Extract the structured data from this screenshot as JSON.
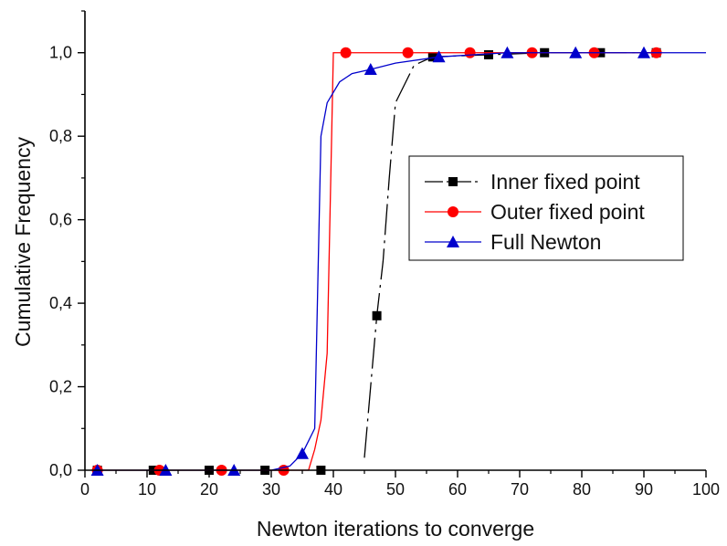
{
  "chart_data": {
    "type": "line",
    "xlabel": "Newton iterations to converge",
    "ylabel": "Cumulative Frequency",
    "xlim": [
      0,
      100
    ],
    "ylim": [
      0,
      1.1
    ],
    "x_ticks": [
      0,
      10,
      20,
      30,
      40,
      50,
      60,
      70,
      80,
      90,
      100
    ],
    "x_tick_labels": [
      "0",
      "10",
      "20",
      "30",
      "40",
      "50",
      "60",
      "70",
      "80",
      "90",
      "100"
    ],
    "y_ticks": [
      0,
      0.2,
      0.4,
      0.6,
      0.8,
      1.0
    ],
    "y_tick_labels": [
      "0,0",
      "0,2",
      "0,4",
      "0,6",
      "0,8",
      "1,0"
    ],
    "grid": false,
    "legend_position": "right",
    "series": [
      {
        "name": "Inner fixed point",
        "color": "#000000",
        "marker": "square",
        "line_style": "dash-dot",
        "line": [
          [
            45,
            0.03
          ],
          [
            46,
            0.2
          ],
          [
            47,
            0.37
          ],
          [
            48,
            0.5
          ],
          [
            49,
            0.7
          ],
          [
            50,
            0.88
          ],
          [
            53,
            0.97
          ],
          [
            56,
            0.99
          ],
          [
            65,
            0.995
          ],
          [
            74,
            1.0
          ],
          [
            83,
            1.0
          ],
          [
            92,
            1.0
          ]
        ],
        "markers": [
          [
            2,
            0
          ],
          [
            11,
            0
          ],
          [
            20,
            0
          ],
          [
            29,
            0
          ],
          [
            38,
            0
          ],
          [
            47,
            0.37
          ],
          [
            56,
            0.99
          ],
          [
            65,
            0.995
          ],
          [
            74,
            1.0
          ],
          [
            83,
            1.0
          ],
          [
            92,
            1.0
          ]
        ]
      },
      {
        "name": "Outer fixed point",
        "color": "#ff0000",
        "marker": "circle",
        "line_style": "solid",
        "line": [
          [
            2,
            0
          ],
          [
            32,
            0
          ],
          [
            35,
            0
          ],
          [
            36,
            0
          ],
          [
            37,
            0.05
          ],
          [
            38,
            0.12
          ],
          [
            39,
            0.28
          ],
          [
            40,
            1.0
          ],
          [
            42,
            1.0
          ],
          [
            52,
            1.0
          ],
          [
            62,
            1.0
          ],
          [
            72,
            1.0
          ],
          [
            82,
            1.0
          ],
          [
            92,
            1.0
          ]
        ],
        "markers": [
          [
            2,
            0
          ],
          [
            12,
            0
          ],
          [
            22,
            0
          ],
          [
            32,
            0
          ],
          [
            42,
            1.0
          ],
          [
            52,
            1.0
          ],
          [
            62,
            1.0
          ],
          [
            72,
            1.0
          ],
          [
            82,
            1.0
          ],
          [
            92,
            1.0
          ]
        ]
      },
      {
        "name": "Full Newton",
        "color": "#0000cc",
        "marker": "triangle",
        "line_style": "solid",
        "line": [
          [
            2,
            0
          ],
          [
            13,
            0
          ],
          [
            24,
            0
          ],
          [
            30,
            0
          ],
          [
            33,
            0.01
          ],
          [
            35,
            0.04
          ],
          [
            37,
            0.1
          ],
          [
            38,
            0.8
          ],
          [
            39,
            0.88
          ],
          [
            41,
            0.93
          ],
          [
            43,
            0.95
          ],
          [
            46,
            0.96
          ],
          [
            50,
            0.975
          ],
          [
            57,
            0.99
          ],
          [
            68,
            1.0
          ],
          [
            79,
            1.0
          ],
          [
            90,
            1.0
          ],
          [
            100,
            1.0
          ]
        ],
        "markers": [
          [
            2,
            0
          ],
          [
            13,
            0
          ],
          [
            24,
            0
          ],
          [
            35,
            0.04
          ],
          [
            46,
            0.96
          ],
          [
            57,
            0.99
          ],
          [
            68,
            1.0
          ],
          [
            79,
            1.0
          ],
          [
            90,
            1.0
          ]
        ]
      }
    ]
  }
}
